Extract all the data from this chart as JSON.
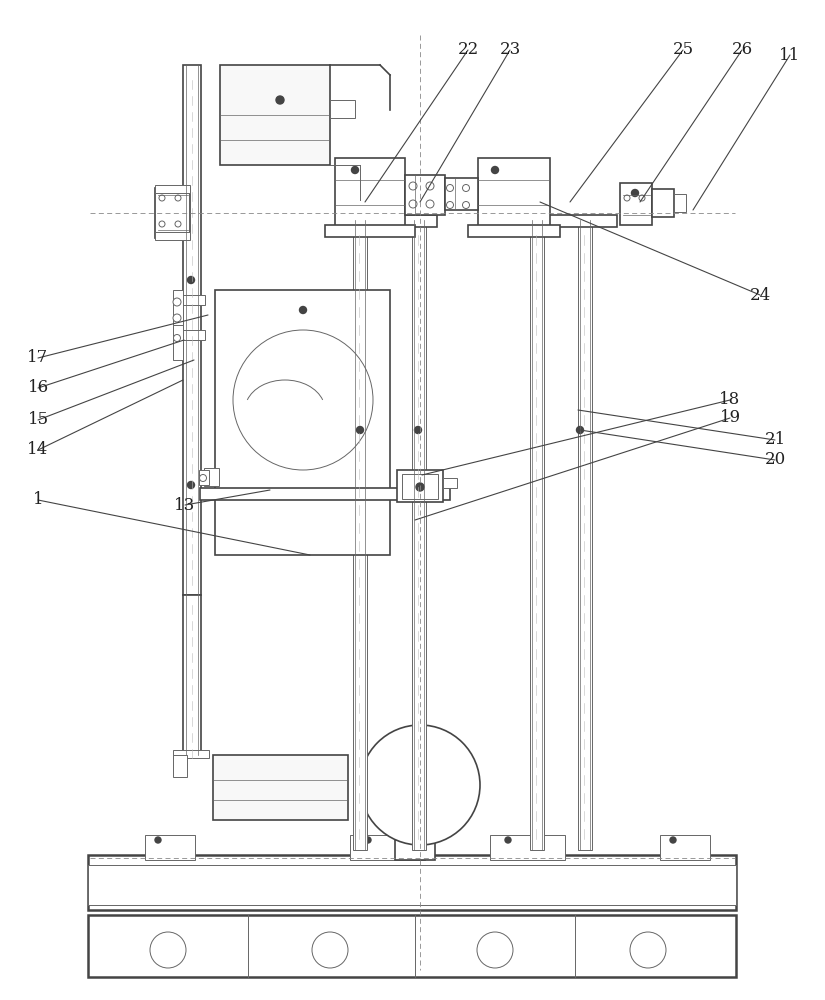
{
  "bg_color": "#ffffff",
  "lc": "#444444",
  "lc2": "#666666",
  "fig_width": 8.25,
  "fig_height": 10.0,
  "annotations": [
    [
      "1",
      310,
      555,
      38,
      500
    ],
    [
      "11",
      693,
      210,
      790,
      55
    ],
    [
      "13",
      270,
      490,
      185,
      505
    ],
    [
      "14",
      183,
      380,
      38,
      450
    ],
    [
      "15",
      194,
      360,
      38,
      420
    ],
    [
      "16",
      184,
      340,
      38,
      388
    ],
    [
      "17",
      208,
      315,
      38,
      358
    ],
    [
      "18",
      422,
      475,
      730,
      400
    ],
    [
      "19",
      415,
      520,
      730,
      418
    ],
    [
      "20",
      580,
      430,
      775,
      460
    ],
    [
      "21",
      578,
      410,
      775,
      440
    ],
    [
      "22",
      365,
      202,
      468,
      50
    ],
    [
      "23",
      420,
      202,
      510,
      50
    ],
    [
      "24",
      540,
      202,
      760,
      295
    ],
    [
      "25",
      570,
      202,
      683,
      50
    ],
    [
      "26",
      640,
      202,
      742,
      50
    ]
  ]
}
